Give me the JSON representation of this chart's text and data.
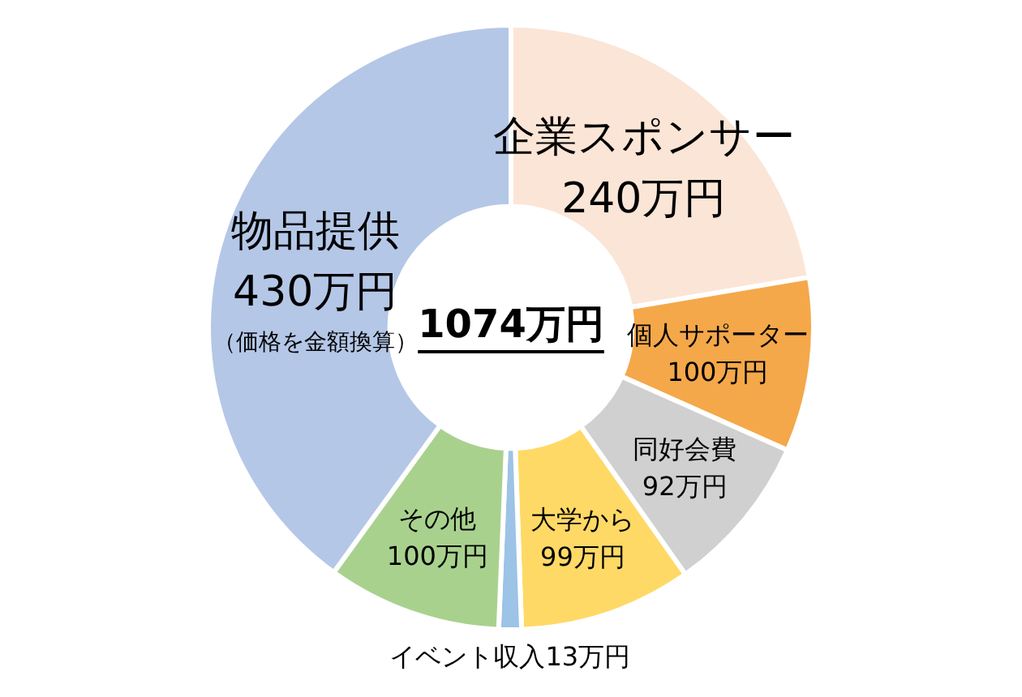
{
  "chart_data": {
    "type": "donut",
    "categories": [
      "企業スポンサー",
      "個人サポーター",
      "同好会費",
      "大学から",
      "イベント収入",
      "その他",
      "物品提供"
    ],
    "values": [
      240,
      100,
      92,
      99,
      13,
      100,
      430
    ],
    "value_labels": [
      "240万円",
      "100万円",
      "92万円",
      "99万円",
      "13万円",
      "100万円",
      "430万円"
    ],
    "colors": [
      "#fbe5d6",
      "#f4a84a",
      "#d0d0d0",
      "#ffd966",
      "#9dc3e6",
      "#a9d18e",
      "#b4c7e7"
    ],
    "annotations": [
      "1074万円",
      {
        "text": "（価格を金額換算）",
        "x": "物品提供"
      }
    ],
    "legend": false
  }
}
